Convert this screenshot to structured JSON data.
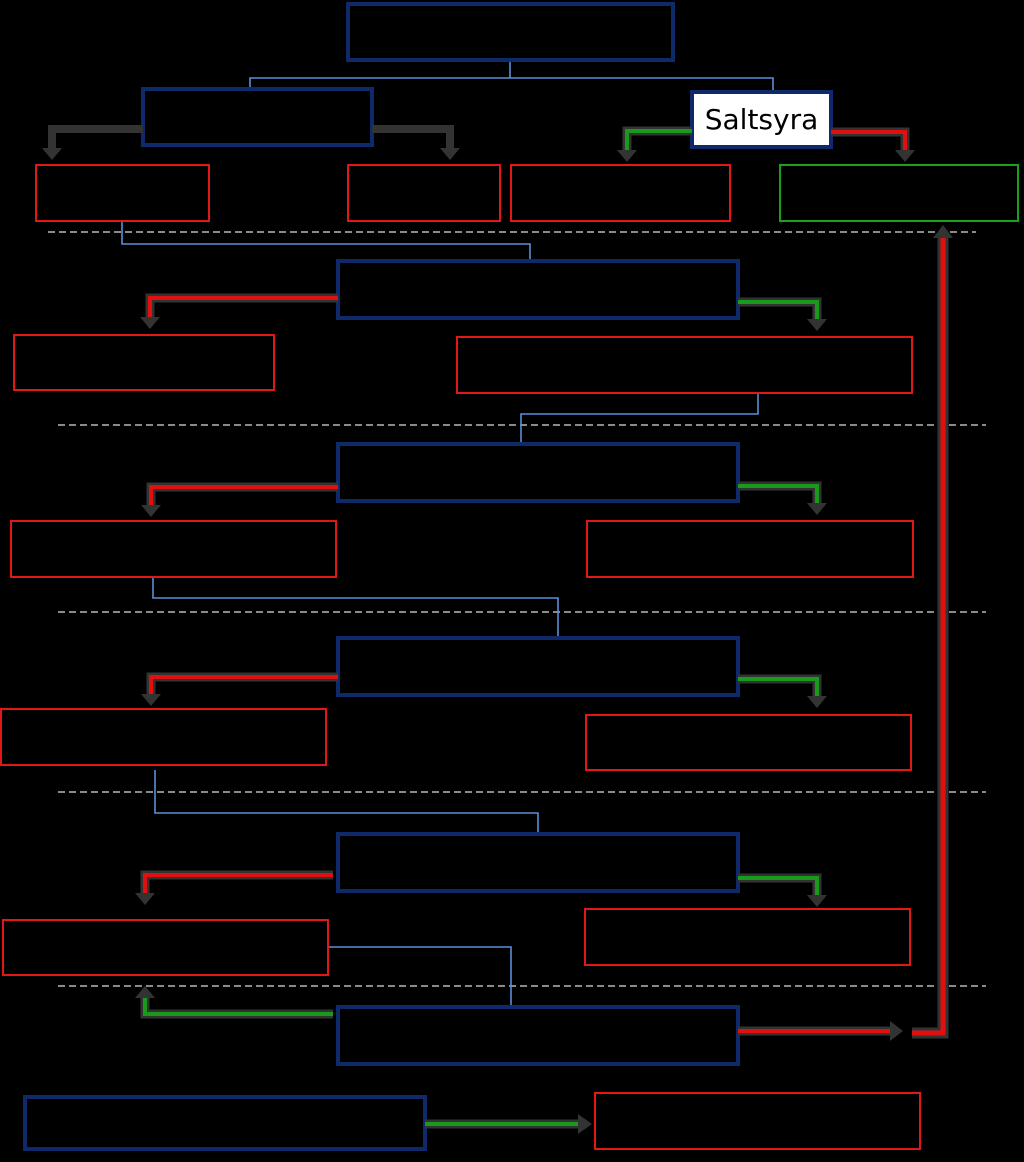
{
  "diagram": {
    "start_node": {
      "label": ""
    },
    "reagent_box": {
      "label": ""
    },
    "saltsyra_box": {
      "label": "Saltsyra"
    },
    "colors": {
      "background": "#000000",
      "node_border": "#0e2a6b",
      "result_border": "#e01818",
      "positive_border": "#1aa11a",
      "connector": "#5b8fd6",
      "arrow_dark": "#2b2b2b",
      "arrow_red": "#e01010",
      "arrow_green": "#1a9a1a",
      "divider": "#8a8a8a"
    },
    "steps": [
      {
        "reagent": "",
        "positive": "",
        "negative": ""
      },
      {
        "reagent": "",
        "positive": "",
        "negative": ""
      },
      {
        "reagent": "",
        "positive": "",
        "negative": ""
      },
      {
        "reagent": "",
        "positive": "",
        "negative": ""
      },
      {
        "reagent": "",
        "positive": "",
        "negative": ""
      },
      {
        "reagent": "",
        "positive": "",
        "negative": ""
      }
    ],
    "footer": {
      "reagent": "",
      "result": ""
    }
  }
}
